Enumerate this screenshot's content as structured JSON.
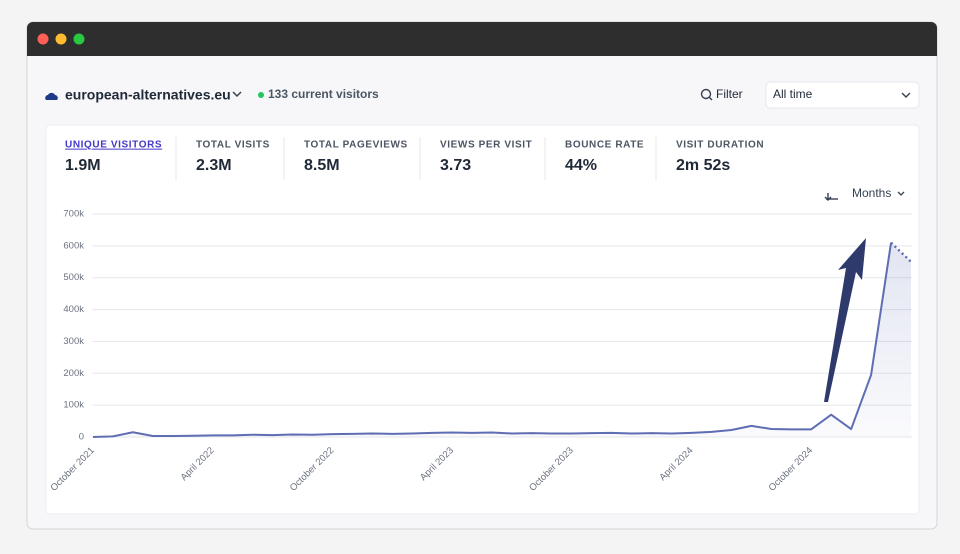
{
  "header": {
    "site": "european-alternatives.eu",
    "current_visitors": "133 current visitors",
    "filter": "Filter",
    "period": "All time"
  },
  "stats": [
    {
      "label": "UNIQUE VISITORS",
      "value": "1.9M"
    },
    {
      "label": "TOTAL VISITS",
      "value": "2.3M"
    },
    {
      "label": "TOTAL PAGEVIEWS",
      "value": "8.5M"
    },
    {
      "label": "VIEWS PER VISIT",
      "value": "3.73"
    },
    {
      "label": "BOUNCE RATE",
      "value": "44%"
    },
    {
      "label": "VISIT DURATION",
      "value": "2m 52s"
    }
  ],
  "interval": "Months",
  "chart_data": {
    "type": "line",
    "categories": [
      "October 2021",
      null,
      null,
      null,
      null,
      null,
      "April 2022",
      null,
      null,
      null,
      null,
      null,
      "October 2022",
      null,
      null,
      null,
      null,
      null,
      "April 2023",
      null,
      null,
      null,
      null,
      null,
      "October 2023",
      null,
      null,
      null,
      null,
      null,
      "April 2024",
      null,
      null,
      null,
      null,
      null,
      "October 2024",
      null,
      null,
      null,
      null,
      null
    ],
    "values": [
      0,
      2000,
      15000,
      3000,
      3000,
      4000,
      5000,
      5000,
      7000,
      6000,
      8000,
      7000,
      9000,
      10000,
      11000,
      10000,
      11000,
      13000,
      14000,
      13000,
      14000,
      11000,
      12000,
      11000,
      11000,
      12000,
      13000,
      11000,
      12000,
      11000,
      13000,
      16000,
      22000,
      35000,
      25000,
      24000,
      24000,
      70000,
      25000,
      195000,
      610000,
      550000
    ],
    "color": "#5f6db3",
    "ylim": [
      0,
      700000
    ],
    "yticks": [
      {
        "value": 0,
        "label": "0"
      },
      {
        "value": 100000,
        "label": "100k"
      },
      {
        "value": 200000,
        "label": "200k"
      },
      {
        "value": 300000,
        "label": "300k"
      },
      {
        "value": 400000,
        "label": "400k"
      },
      {
        "value": 500000,
        "label": "500k"
      },
      {
        "value": 600000,
        "label": "600k"
      },
      {
        "value": 700000,
        "label": "700k"
      }
    ],
    "grid": true
  }
}
